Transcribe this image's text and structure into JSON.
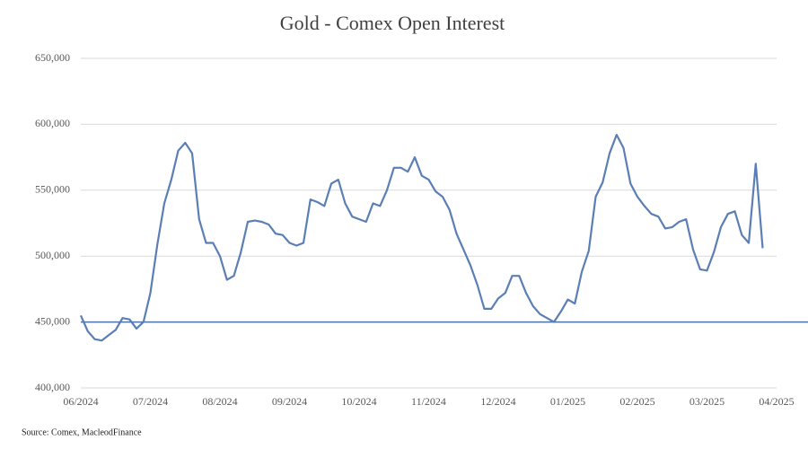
{
  "chart_data": {
    "type": "line",
    "title": "Gold - Comex Open Interest",
    "source": "Source: Comex,  MacleodFinance",
    "xlim": [
      0,
      10
    ],
    "xticks": [
      {
        "value": 0,
        "label": "06/2024"
      },
      {
        "value": 1,
        "label": "07/2024"
      },
      {
        "value": 2,
        "label": "08/2024"
      },
      {
        "value": 3,
        "label": "09/2024"
      },
      {
        "value": 4,
        "label": "10/2024"
      },
      {
        "value": 5,
        "label": "11/2024"
      },
      {
        "value": 6,
        "label": "12/2024"
      },
      {
        "value": 7,
        "label": "01/2025"
      },
      {
        "value": 8,
        "label": "02/2025"
      },
      {
        "value": 9,
        "label": "03/2025"
      },
      {
        "value": 10,
        "label": "04/2025"
      }
    ],
    "ylim": [
      400000,
      650000
    ],
    "yticks": [
      {
        "value": 400000,
        "label": "400,000"
      },
      {
        "value": 450000,
        "label": "450,000"
      },
      {
        "value": 500000,
        "label": "500,000"
      },
      {
        "value": 550000,
        "label": "550,000"
      },
      {
        "value": 600000,
        "label": "600,000"
      },
      {
        "value": 650000,
        "label": "650,000"
      }
    ],
    "grid": true,
    "reference_line": 450000,
    "reference_color": "#4a72a8",
    "x": [
      0,
      0.1,
      0.2,
      0.3,
      0.4,
      0.5,
      0.6,
      0.7,
      0.8,
      0.9,
      1,
      1.1,
      1.2,
      1.3,
      1.4,
      1.5,
      1.6,
      1.7,
      1.8,
      1.9,
      2,
      2.1,
      2.2,
      2.3,
      2.4,
      2.5,
      2.6,
      2.7,
      2.8,
      2.9,
      3,
      3.1,
      3.2,
      3.3,
      3.4,
      3.5,
      3.6,
      3.7,
      3.8,
      3.9,
      4,
      4.1,
      4.2,
      4.3,
      4.4,
      4.5,
      4.6,
      4.7,
      4.8,
      4.9,
      5,
      5.1,
      5.2,
      5.3,
      5.4,
      5.5,
      5.6,
      5.7,
      5.8,
      5.9,
      6,
      6.1,
      6.2,
      6.3,
      6.4,
      6.5,
      6.6,
      6.7,
      6.8,
      6.9,
      7,
      7.1,
      7.2,
      7.3,
      7.4,
      7.5,
      7.6,
      7.7,
      7.8,
      7.9,
      8,
      8.1,
      8.2,
      8.3,
      8.4,
      8.5,
      8.6,
      8.7,
      8.8,
      8.9,
      9,
      9.1,
      9.2,
      9.3,
      9.4,
      9.5,
      9.6,
      9.7,
      9.8
    ],
    "series": [
      {
        "name": "Open Interest",
        "color": "#5b7fb5",
        "values": [
          455000,
          443000,
          437000,
          436000,
          440000,
          444000,
          453000,
          452000,
          445000,
          450000,
          472000,
          509000,
          540000,
          558000,
          580000,
          586000,
          578000,
          528000,
          510000,
          510000,
          500000,
          482000,
          485000,
          503000,
          526000,
          527000,
          526000,
          524000,
          517000,
          516000,
          510000,
          508000,
          510000,
          543000,
          541000,
          538000,
          555000,
          558000,
          540000,
          530000,
          528000,
          526000,
          540000,
          538000,
          550000,
          567000,
          567000,
          564000,
          575000,
          561000,
          558000,
          549000,
          545000,
          535000,
          517000,
          505000,
          493000,
          478000,
          460000,
          460000,
          468000,
          472000,
          485000,
          485000,
          472000,
          462000,
          456000,
          453000,
          450000,
          458000,
          467000,
          464000,
          488000,
          504000,
          545000,
          556000,
          578000,
          592000,
          582000,
          555000,
          545000,
          538000,
          532000,
          530000,
          521000,
          522000,
          526000,
          528000,
          505000,
          490000,
          489000,
          503000,
          522000,
          532000,
          534000,
          516000,
          510000,
          570000,
          506000
        ]
      }
    ]
  }
}
